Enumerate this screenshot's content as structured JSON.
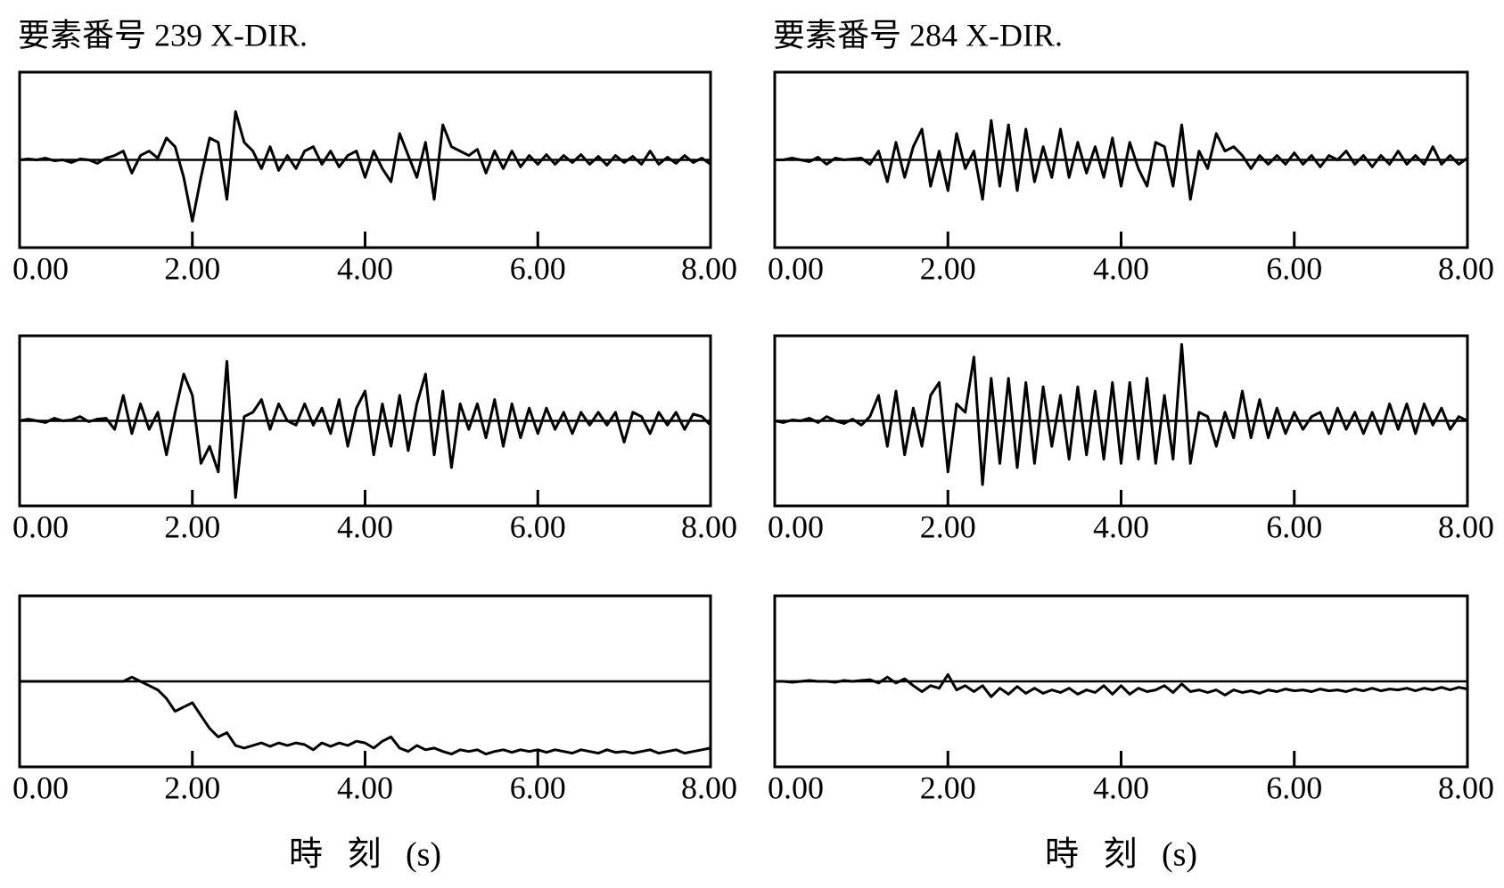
{
  "chart_data": [
    {
      "type": "line",
      "title": "要素番号 239 X-DIR.",
      "color": "#000000",
      "xlim": [
        0,
        8
      ],
      "ylim": [
        -1,
        1
      ],
      "xticks": [
        {
          "value": 0,
          "label": "0.00"
        },
        {
          "value": 2,
          "label": "2.00"
        },
        {
          "value": 4,
          "label": "4.00"
        },
        {
          "value": 6,
          "label": "6.00"
        },
        {
          "value": 8,
          "label": "8.00"
        }
      ],
      "x": [
        0,
        0.1,
        0.2,
        0.3,
        0.4,
        0.5,
        0.6,
        0.7,
        0.8,
        0.9,
        1,
        1.1,
        1.2,
        1.3,
        1.4,
        1.5,
        1.6,
        1.7,
        1.8,
        1.9,
        2,
        2.1,
        2.2,
        2.3,
        2.4,
        2.5,
        2.6,
        2.7,
        2.8,
        2.9,
        3,
        3.1,
        3.2,
        3.3,
        3.4,
        3.5,
        3.6,
        3.7,
        3.8,
        3.9,
        4,
        4.1,
        4.2,
        4.3,
        4.4,
        4.5,
        4.6,
        4.7,
        4.8,
        4.9,
        5,
        5.1,
        5.2,
        5.3,
        5.4,
        5.5,
        5.6,
        5.7,
        5.8,
        5.9,
        6,
        6.1,
        6.2,
        6.3,
        6.4,
        6.5,
        6.6,
        6.7,
        6.8,
        6.9,
        7,
        7.1,
        7.2,
        7.3,
        7.4,
        7.5,
        7.6,
        7.7,
        7.8,
        7.9,
        8
      ],
      "values": [
        0,
        0.01,
        0,
        0.02,
        -0.01,
        0,
        -0.03,
        0.01,
        0,
        -0.04,
        0.02,
        0.05,
        0.1,
        -0.15,
        0.05,
        0.1,
        0.02,
        0.25,
        0.15,
        -0.2,
        -0.7,
        -0.2,
        0.25,
        0.2,
        -0.45,
        0.55,
        0.2,
        0.1,
        -0.1,
        0.15,
        -0.12,
        0.05,
        -0.1,
        0.1,
        0.15,
        -0.05,
        0.1,
        -0.08,
        0.05,
        0.1,
        -0.2,
        0.1,
        -0.1,
        -0.25,
        0.3,
        0.05,
        -0.2,
        0.2,
        -0.45,
        0.4,
        0.15,
        0.1,
        0.05,
        0.12,
        -0.15,
        0.1,
        -0.1,
        0.1,
        -0.08,
        0.05,
        -0.05,
        0.06,
        -0.05,
        0.05,
        -0.03,
        0.06,
        -0.05,
        0.04,
        -0.06,
        0.05,
        -0.03,
        0.04,
        -0.05,
        0.1,
        -0.05,
        0.03,
        -0.04,
        0.05,
        -0.03,
        0.02,
        -0.05
      ]
    },
    {
      "type": "line",
      "color": "#000000",
      "xlim": [
        0,
        8
      ],
      "ylim": [
        -1,
        1
      ],
      "xticks": [
        {
          "value": 0,
          "label": "0.00"
        },
        {
          "value": 2,
          "label": "2.00"
        },
        {
          "value": 4,
          "label": "4.00"
        },
        {
          "value": 6,
          "label": "6.00"
        },
        {
          "value": 8,
          "label": "8.00"
        }
      ],
      "x": [
        0,
        0.1,
        0.2,
        0.3,
        0.4,
        0.5,
        0.6,
        0.7,
        0.8,
        0.9,
        1,
        1.1,
        1.2,
        1.3,
        1.4,
        1.5,
        1.6,
        1.7,
        1.8,
        1.9,
        2,
        2.1,
        2.2,
        2.3,
        2.4,
        2.5,
        2.6,
        2.7,
        2.8,
        2.9,
        3,
        3.1,
        3.2,
        3.3,
        3.4,
        3.5,
        3.6,
        3.7,
        3.8,
        3.9,
        4,
        4.1,
        4.2,
        4.3,
        4.4,
        4.5,
        4.6,
        4.7,
        4.8,
        4.9,
        5,
        5.1,
        5.2,
        5.3,
        5.4,
        5.5,
        5.6,
        5.7,
        5.8,
        5.9,
        6,
        6.1,
        6.2,
        6.3,
        6.4,
        6.5,
        6.6,
        6.7,
        6.8,
        6.9,
        7,
        7.1,
        7.2,
        7.3,
        7.4,
        7.5,
        7.6,
        7.7,
        7.8,
        7.9,
        8
      ],
      "values": [
        0,
        0.02,
        0,
        -0.02,
        0.03,
        0,
        0.01,
        0.05,
        -0.01,
        0.02,
        0.03,
        -0.1,
        0.3,
        -0.15,
        0.2,
        -0.1,
        0.1,
        -0.4,
        0.1,
        0.55,
        0.3,
        -0.5,
        -0.3,
        -0.6,
        0.7,
        -0.9,
        0.05,
        0.1,
        0.25,
        -0.1,
        0.2,
        0,
        -0.05,
        0.2,
        -0.05,
        0.15,
        -0.15,
        0.25,
        -0.3,
        0.15,
        0.35,
        -0.4,
        0.2,
        -0.3,
        0.3,
        -0.35,
        0.2,
        0.55,
        -0.4,
        0.35,
        -0.55,
        0.2,
        -0.1,
        0.2,
        -0.2,
        0.25,
        -0.3,
        0.2,
        -0.2,
        0.15,
        -0.15,
        0.15,
        -0.1,
        0.1,
        -0.15,
        0.1,
        -0.05,
        0.1,
        -0.05,
        0.1,
        -0.25,
        0.1,
        0.05,
        -0.15,
        0.1,
        -0.05,
        0.1,
        -0.1,
        0.08,
        0.05,
        -0.05
      ]
    },
    {
      "type": "line",
      "color": "#000000",
      "xlim": [
        0,
        8
      ],
      "ylim": [
        -1,
        1
      ],
      "xlabel": "時 刻 (s)",
      "xticks": [
        {
          "value": 0,
          "label": "0.00"
        },
        {
          "value": 2,
          "label": "2.00"
        },
        {
          "value": 4,
          "label": "4.00"
        },
        {
          "value": 6,
          "label": "6.00"
        },
        {
          "value": 8,
          "label": "8.00"
        }
      ],
      "x": [
        0,
        0.1,
        0.2,
        0.3,
        0.4,
        0.5,
        0.6,
        0.7,
        0.8,
        0.9,
        1,
        1.1,
        1.2,
        1.3,
        1.4,
        1.5,
        1.6,
        1.7,
        1.8,
        1.9,
        2,
        2.1,
        2.2,
        2.3,
        2.4,
        2.5,
        2.6,
        2.7,
        2.8,
        2.9,
        3,
        3.1,
        3.2,
        3.3,
        3.4,
        3.5,
        3.6,
        3.7,
        3.8,
        3.9,
        4,
        4.1,
        4.2,
        4.3,
        4.4,
        4.5,
        4.6,
        4.7,
        4.8,
        4.9,
        5,
        5.1,
        5.2,
        5.3,
        5.4,
        5.5,
        5.6,
        5.7,
        5.8,
        5.9,
        6,
        6.1,
        6.2,
        6.3,
        6.4,
        6.5,
        6.6,
        6.7,
        6.8,
        6.9,
        7,
        7.1,
        7.2,
        7.3,
        7.4,
        7.5,
        7.6,
        7.7,
        7.8,
        7.9,
        8
      ],
      "values": [
        0,
        0,
        0,
        0,
        0,
        0,
        0,
        0,
        0,
        0,
        0,
        0,
        0,
        0.05,
        0,
        -0.05,
        -0.1,
        -0.2,
        -0.35,
        -0.3,
        -0.25,
        -0.4,
        -0.55,
        -0.65,
        -0.6,
        -0.75,
        -0.78,
        -0.75,
        -0.72,
        -0.76,
        -0.72,
        -0.75,
        -0.72,
        -0.74,
        -0.8,
        -0.72,
        -0.76,
        -0.72,
        -0.75,
        -0.7,
        -0.72,
        -0.78,
        -0.7,
        -0.65,
        -0.78,
        -0.82,
        -0.75,
        -0.8,
        -0.78,
        -0.82,
        -0.85,
        -0.8,
        -0.82,
        -0.8,
        -0.85,
        -0.82,
        -0.8,
        -0.83,
        -0.8,
        -0.82,
        -0.8,
        -0.83,
        -0.8,
        -0.82,
        -0.84,
        -0.8,
        -0.82,
        -0.84,
        -0.8,
        -0.83,
        -0.82,
        -0.84,
        -0.82,
        -0.8,
        -0.84,
        -0.82,
        -0.8,
        -0.84,
        -0.82,
        -0.8,
        -0.78
      ]
    },
    {
      "type": "line",
      "title": "要素番号 284 X-DIR.",
      "color": "#000000",
      "xlim": [
        0,
        8
      ],
      "ylim": [
        -1,
        1
      ],
      "xticks": [
        {
          "value": 0,
          "label": "0.00"
        },
        {
          "value": 2,
          "label": "2.00"
        },
        {
          "value": 4,
          "label": "4.00"
        },
        {
          "value": 6,
          "label": "6.00"
        },
        {
          "value": 8,
          "label": "8.00"
        }
      ],
      "x": [
        0,
        0.1,
        0.2,
        0.3,
        0.4,
        0.5,
        0.6,
        0.7,
        0.8,
        0.9,
        1,
        1.1,
        1.2,
        1.3,
        1.4,
        1.5,
        1.6,
        1.7,
        1.8,
        1.9,
        2,
        2.1,
        2.2,
        2.3,
        2.4,
        2.5,
        2.6,
        2.7,
        2.8,
        2.9,
        3,
        3.1,
        3.2,
        3.3,
        3.4,
        3.5,
        3.6,
        3.7,
        3.8,
        3.9,
        4,
        4.1,
        4.2,
        4.3,
        4.4,
        4.5,
        4.6,
        4.7,
        4.8,
        4.9,
        5,
        5.1,
        5.2,
        5.3,
        5.4,
        5.5,
        5.6,
        5.7,
        5.8,
        5.9,
        6,
        6.1,
        6.2,
        6.3,
        6.4,
        6.5,
        6.6,
        6.7,
        6.8,
        6.9,
        7,
        7.1,
        7.2,
        7.3,
        7.4,
        7.5,
        7.6,
        7.7,
        7.8,
        7.9,
        8
      ],
      "values": [
        0,
        0,
        0.02,
        0,
        -0.02,
        0.03,
        -0.05,
        0.02,
        0,
        0.01,
        0.02,
        -0.05,
        0.1,
        -0.25,
        0.2,
        -0.2,
        0.15,
        0.35,
        -0.3,
        0.1,
        -0.35,
        0.3,
        -0.1,
        0.1,
        -0.45,
        0.45,
        -0.3,
        0.4,
        -0.35,
        0.35,
        -0.25,
        0.15,
        -0.2,
        0.35,
        -0.2,
        0.2,
        -0.15,
        0.15,
        -0.2,
        0.25,
        -0.3,
        0.2,
        -0.1,
        -0.3,
        0.2,
        0.15,
        -0.3,
        0.4,
        -0.45,
        0.1,
        -0.1,
        0.3,
        0.1,
        0.15,
        0.05,
        -0.1,
        0.05,
        -0.05,
        0.05,
        -0.05,
        0.08,
        -0.05,
        0.05,
        -0.08,
        0.05,
        0,
        0.1,
        -0.05,
        0.05,
        -0.08,
        0.05,
        -0.05,
        0.1,
        -0.05,
        0.05,
        -0.05,
        0.15,
        -0.05,
        0.05,
        -0.05,
        0.02
      ]
    },
    {
      "type": "line",
      "color": "#000000",
      "xlim": [
        0,
        8
      ],
      "ylim": [
        -1,
        1
      ],
      "xticks": [
        {
          "value": 0,
          "label": "0.00"
        },
        {
          "value": 2,
          "label": "2.00"
        },
        {
          "value": 4,
          "label": "4.00"
        },
        {
          "value": 6,
          "label": "6.00"
        },
        {
          "value": 8,
          "label": "8.00"
        }
      ],
      "x": [
        0,
        0.1,
        0.2,
        0.3,
        0.4,
        0.5,
        0.6,
        0.7,
        0.8,
        0.9,
        1,
        1.1,
        1.2,
        1.3,
        1.4,
        1.5,
        1.6,
        1.7,
        1.8,
        1.9,
        2,
        2.1,
        2.2,
        2.3,
        2.4,
        2.5,
        2.6,
        2.7,
        2.8,
        2.9,
        3,
        3.1,
        3.2,
        3.3,
        3.4,
        3.5,
        3.6,
        3.7,
        3.8,
        3.9,
        4,
        4.1,
        4.2,
        4.3,
        4.4,
        4.5,
        4.6,
        4.7,
        4.8,
        4.9,
        5,
        5.1,
        5.2,
        5.3,
        5.4,
        5.5,
        5.6,
        5.7,
        5.8,
        5.9,
        6,
        6.1,
        6.2,
        6.3,
        6.4,
        6.5,
        6.6,
        6.7,
        6.8,
        6.9,
        7,
        7.1,
        7.2,
        7.3,
        7.4,
        7.5,
        7.6,
        7.7,
        7.8,
        7.9,
        8
      ],
      "values": [
        0,
        -0.02,
        0.01,
        0,
        0.03,
        -0.02,
        0.05,
        0,
        -0.03,
        0.02,
        -0.05,
        0.05,
        0.3,
        -0.3,
        0.35,
        -0.4,
        0.15,
        -0.3,
        0.3,
        0.45,
        -0.6,
        0.2,
        0.1,
        0.75,
        -0.75,
        0.5,
        -0.5,
        0.5,
        -0.55,
        0.45,
        -0.5,
        0.4,
        -0.3,
        0.3,
        -0.45,
        0.4,
        -0.4,
        0.35,
        -0.45,
        0.45,
        -0.5,
        0.45,
        -0.45,
        0.5,
        -0.5,
        0.3,
        -0.45,
        0.9,
        -0.5,
        0.1,
        0.05,
        -0.3,
        0.1,
        -0.2,
        0.35,
        -0.2,
        0.25,
        -0.2,
        0.15,
        -0.15,
        0.1,
        -0.1,
        0.05,
        0.1,
        -0.15,
        0.15,
        -0.1,
        0.1,
        -0.15,
        0.1,
        -0.15,
        0.2,
        -0.1,
        0.2,
        -0.15,
        0.2,
        -0.05,
        0.15,
        -0.1,
        0.05,
        0
      ]
    },
    {
      "type": "line",
      "color": "#000000",
      "xlim": [
        0,
        8
      ],
      "ylim": [
        -1,
        1
      ],
      "xlabel": "時 刻 (s)",
      "xticks": [
        {
          "value": 0,
          "label": "0.00"
        },
        {
          "value": 2,
          "label": "2.00"
        },
        {
          "value": 4,
          "label": "4.00"
        },
        {
          "value": 6,
          "label": "6.00"
        },
        {
          "value": 8,
          "label": "8.00"
        }
      ],
      "x": [
        0,
        0.1,
        0.2,
        0.3,
        0.4,
        0.5,
        0.6,
        0.7,
        0.8,
        0.9,
        1,
        1.1,
        1.2,
        1.3,
        1.4,
        1.5,
        1.6,
        1.7,
        1.8,
        1.9,
        2,
        2.1,
        2.2,
        2.3,
        2.4,
        2.5,
        2.6,
        2.7,
        2.8,
        2.9,
        3,
        3.1,
        3.2,
        3.3,
        3.4,
        3.5,
        3.6,
        3.7,
        3.8,
        3.9,
        4,
        4.1,
        4.2,
        4.3,
        4.4,
        4.5,
        4.6,
        4.7,
        4.8,
        4.9,
        5,
        5.1,
        5.2,
        5.3,
        5.4,
        5.5,
        5.6,
        5.7,
        5.8,
        5.9,
        6,
        6.1,
        6.2,
        6.3,
        6.4,
        6.5,
        6.6,
        6.7,
        6.8,
        6.9,
        7,
        7.1,
        7.2,
        7.3,
        7.4,
        7.5,
        7.6,
        7.7,
        7.8,
        7.9,
        8
      ],
      "values": [
        0,
        0,
        -0.01,
        0,
        0.01,
        0,
        0,
        -0.01,
        0.01,
        0,
        0.01,
        0.02,
        -0.02,
        0.05,
        -0.02,
        0.03,
        -0.05,
        -0.12,
        -0.05,
        -0.08,
        0.08,
        -0.1,
        -0.05,
        -0.12,
        -0.05,
        -0.18,
        -0.08,
        -0.15,
        -0.06,
        -0.14,
        -0.08,
        -0.14,
        -0.1,
        -0.13,
        -0.08,
        -0.15,
        -0.1,
        -0.13,
        -0.05,
        -0.15,
        -0.05,
        -0.15,
        -0.08,
        -0.12,
        -0.1,
        -0.05,
        -0.13,
        -0.03,
        -0.12,
        -0.1,
        -0.13,
        -0.1,
        -0.16,
        -0.1,
        -0.13,
        -0.11,
        -0.14,
        -0.1,
        -0.12,
        -0.09,
        -0.11,
        -0.1,
        -0.12,
        -0.09,
        -0.11,
        -0.1,
        -0.12,
        -0.09,
        -0.11,
        -0.08,
        -0.11,
        -0.09,
        -0.1,
        -0.08,
        -0.11,
        -0.08,
        -0.1,
        -0.07,
        -0.1,
        -0.07,
        -0.09
      ]
    }
  ]
}
